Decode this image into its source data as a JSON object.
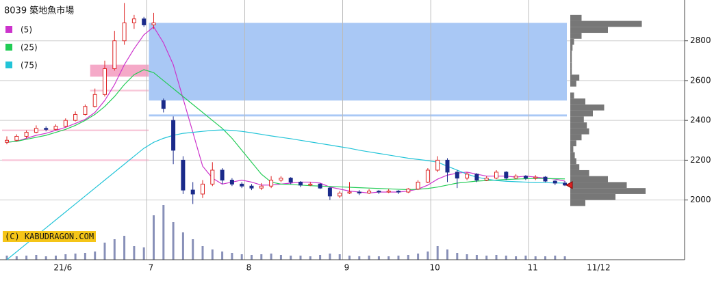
{
  "chart_data": {
    "type": "candlestick",
    "title": "8039 築地魚市場",
    "watermark": "(C) KABUDRAGON.COM",
    "categories": [
      null,
      null,
      null,
      null,
      null,
      null,
      "21/6",
      null,
      null,
      null,
      null,
      null,
      null,
      null,
      null,
      "7",
      null,
      null,
      null,
      null,
      null,
      null,
      null,
      null,
      null,
      "8",
      null,
      null,
      null,
      null,
      null,
      null,
      null,
      null,
      null,
      "9",
      null,
      null,
      null,
      null,
      null,
      null,
      null,
      null,
      "10",
      null,
      null,
      null,
      null,
      null,
      null,
      null,
      null,
      null,
      "11",
      null,
      null,
      "11/12"
    ],
    "ohlc": [
      [
        2290,
        2320,
        2280,
        2300
      ],
      [
        2300,
        2330,
        2295,
        2320
      ],
      [
        2320,
        2350,
        2310,
        2340
      ],
      [
        2340,
        2375,
        2335,
        2360
      ],
      [
        2360,
        2370,
        2345,
        2355
      ],
      [
        2355,
        2380,
        2350,
        2370
      ],
      [
        2370,
        2410,
        2365,
        2400
      ],
      [
        2400,
        2445,
        2395,
        2430
      ],
      [
        2430,
        2480,
        2425,
        2470
      ],
      [
        2470,
        2560,
        2465,
        2530
      ],
      [
        2530,
        2700,
        2520,
        2660
      ],
      [
        2660,
        2850,
        2650,
        2800
      ],
      [
        2800,
        2990,
        2780,
        2890
      ],
      [
        2890,
        2930,
        2860,
        2910
      ],
      [
        2910,
        2920,
        2870,
        2880
      ],
      [
        2880,
        2940,
        2860,
        2890
      ],
      [
        2500,
        2510,
        2440,
        2460
      ],
      [
        2400,
        2420,
        2180,
        2250
      ],
      [
        2200,
        2220,
        2030,
        2050
      ],
      [
        2050,
        2090,
        1980,
        2030
      ],
      [
        2030,
        2100,
        2010,
        2080
      ],
      [
        2080,
        2190,
        2070,
        2150
      ],
      [
        2150,
        2160,
        2080,
        2100
      ],
      [
        2100,
        2110,
        2070,
        2080
      ],
      [
        2080,
        2090,
        2060,
        2070
      ],
      [
        2070,
        2080,
        2050,
        2060
      ],
      [
        2060,
        2085,
        2050,
        2070
      ],
      [
        2070,
        2120,
        2060,
        2100
      ],
      [
        2100,
        2120,
        2090,
        2110
      ],
      [
        2110,
        2115,
        2080,
        2090
      ],
      [
        2090,
        2095,
        2065,
        2075
      ],
      [
        2075,
        2090,
        2070,
        2080
      ],
      [
        2080,
        2085,
        2055,
        2060
      ],
      [
        2060,
        2065,
        2000,
        2020
      ],
      [
        2020,
        2045,
        2010,
        2035
      ],
      [
        2035,
        2090,
        2030,
        2040
      ],
      [
        2040,
        2050,
        2025,
        2035
      ],
      [
        2035,
        2055,
        2030,
        2045
      ],
      [
        2045,
        2050,
        2030,
        2040
      ],
      [
        2040,
        2055,
        2035,
        2045
      ],
      [
        2045,
        2050,
        2030,
        2040
      ],
      [
        2040,
        2060,
        2035,
        2055
      ],
      [
        2055,
        2100,
        2050,
        2090
      ],
      [
        2090,
        2160,
        2085,
        2150
      ],
      [
        2150,
        2220,
        2140,
        2200
      ],
      [
        2200,
        2210,
        2090,
        2140
      ],
      [
        2140,
        2150,
        2060,
        2110
      ],
      [
        2110,
        2140,
        2100,
        2130
      ],
      [
        2130,
        2135,
        2090,
        2100
      ],
      [
        2100,
        2120,
        2095,
        2110
      ],
      [
        2110,
        2150,
        2105,
        2140
      ],
      [
        2140,
        2145,
        2100,
        2110
      ],
      [
        2110,
        2130,
        2105,
        2120
      ],
      [
        2120,
        2125,
        2100,
        2110
      ],
      [
        2110,
        2125,
        2100,
        2115
      ],
      [
        2115,
        2120,
        2090,
        2095
      ],
      [
        2095,
        2100,
        2075,
        2085
      ],
      [
        2085,
        2095,
        2070,
        2075
      ]
    ],
    "series": [
      {
        "name": "(5)",
        "color": "#cc33cc",
        "values": [
          2290,
          2295,
          2310,
          2325,
          2335,
          2350,
          2365,
          2385,
          2405,
          2440,
          2500,
          2580,
          2680,
          2760,
          2830,
          2870,
          2790,
          2680,
          2510,
          2340,
          2170,
          2110,
          2080,
          2090,
          2100,
          2090,
          2075,
          2075,
          2080,
          2085,
          2090,
          2090,
          2085,
          2065,
          2055,
          2045,
          2040,
          2035,
          2040,
          2040,
          2040,
          2045,
          2055,
          2075,
          2105,
          2125,
          2135,
          2140,
          2130,
          2120,
          2120,
          2120,
          2115,
          2120,
          2115,
          2110,
          2105,
          2095
        ]
      },
      {
        "name": "(25)",
        "color": "#22cc55",
        "values": [
          2290,
          2295,
          2305,
          2315,
          2325,
          2340,
          2355,
          2375,
          2400,
          2430,
          2470,
          2520,
          2580,
          2630,
          2655,
          2640,
          2600,
          2560,
          2520,
          2480,
          2440,
          2400,
          2360,
          2310,
          2250,
          2190,
          2130,
          2090,
          2080,
          2078,
          2075,
          2072,
          2070,
          2068,
          2066,
          2064,
          2062,
          2060,
          2058,
          2056,
          2054,
          2052,
          2054,
          2058,
          2065,
          2075,
          2085,
          2090,
          2095,
          2098,
          2100,
          2103,
          2105,
          2107,
          2108,
          2108,
          2107,
          2106
        ]
      },
      {
        "name": "(75)",
        "color": "#22c4d8",
        "values": [
          1700,
          1740,
          1780,
          1820,
          1860,
          1900,
          1940,
          1980,
          2020,
          2060,
          2100,
          2140,
          2180,
          2220,
          2260,
          2290,
          2310,
          2325,
          2335,
          2340,
          2345,
          2350,
          2352,
          2350,
          2345,
          2338,
          2330,
          2322,
          2315,
          2308,
          2300,
          2292,
          2284,
          2276,
          2268,
          2260,
          2250,
          2242,
          2234,
          2226,
          2218,
          2210,
          2204,
          2198,
          2190,
          2170,
          2150,
          2130,
          2115,
          2105,
          2098,
          2094,
          2092,
          2090,
          2088,
          2087,
          2086,
          2085
        ]
      }
    ],
    "volume": [
      6,
      5,
      6,
      7,
      5,
      6,
      8,
      9,
      10,
      12,
      25,
      30,
      35,
      20,
      18,
      65,
      80,
      55,
      40,
      30,
      20,
      15,
      12,
      10,
      8,
      7,
      8,
      9,
      7,
      6,
      6,
      5,
      7,
      9,
      8,
      6,
      5,
      6,
      5,
      5,
      6,
      7,
      9,
      12,
      20,
      15,
      10,
      8,
      7,
      6,
      7,
      6,
      5,
      6,
      5,
      5,
      6,
      5
    ],
    "volume_lim": [
      0,
      100
    ],
    "profile": {
      "bins": [
        1970,
        2000,
        2030,
        2060,
        2090,
        2120,
        2150,
        2180,
        2210,
        2240,
        2270,
        2300,
        2330,
        2360,
        2390,
        2420,
        2450,
        2480,
        2510,
        2540,
        2570,
        2600,
        2630,
        2660,
        2690,
        2720,
        2750,
        2780,
        2810,
        2840,
        2870,
        2900,
        2930
      ],
      "counts": [
        20,
        60,
        100,
        75,
        50,
        25,
        12,
        8,
        6,
        4,
        8,
        15,
        25,
        22,
        18,
        30,
        45,
        20,
        5,
        0,
        8,
        12,
        2,
        2,
        2,
        2,
        3,
        5,
        15,
        50,
        95,
        15
      ]
    },
    "zones": [
      {
        "from": 2500,
        "to": 2890,
        "start": 15,
        "end": 57,
        "color": "#a9c8f5"
      },
      {
        "from": 2420,
        "to": 2430,
        "start": 15,
        "end": 57,
        "color": "#a9c8f5"
      },
      {
        "from": 2620,
        "to": 2680,
        "start": 9,
        "end": 14,
        "color": "#f5a9c8"
      },
      {
        "from": 2546,
        "to": 2554,
        "start": 9,
        "end": 14,
        "color": "#f8c6d8"
      },
      {
        "from": 2346,
        "to": 2354,
        "start": 0,
        "end": 14,
        "color": "#f8c6d8"
      },
      {
        "from": 2196,
        "to": 2204,
        "start": 0,
        "end": 14,
        "color": "#f8c6d8"
      }
    ],
    "ylim": [
      1700,
      3005
    ],
    "yticks": [
      2000,
      2200,
      2400,
      2600,
      2800
    ],
    "grid": true,
    "up_color": "#dd2222",
    "down_color": "#1a2a8a"
  }
}
